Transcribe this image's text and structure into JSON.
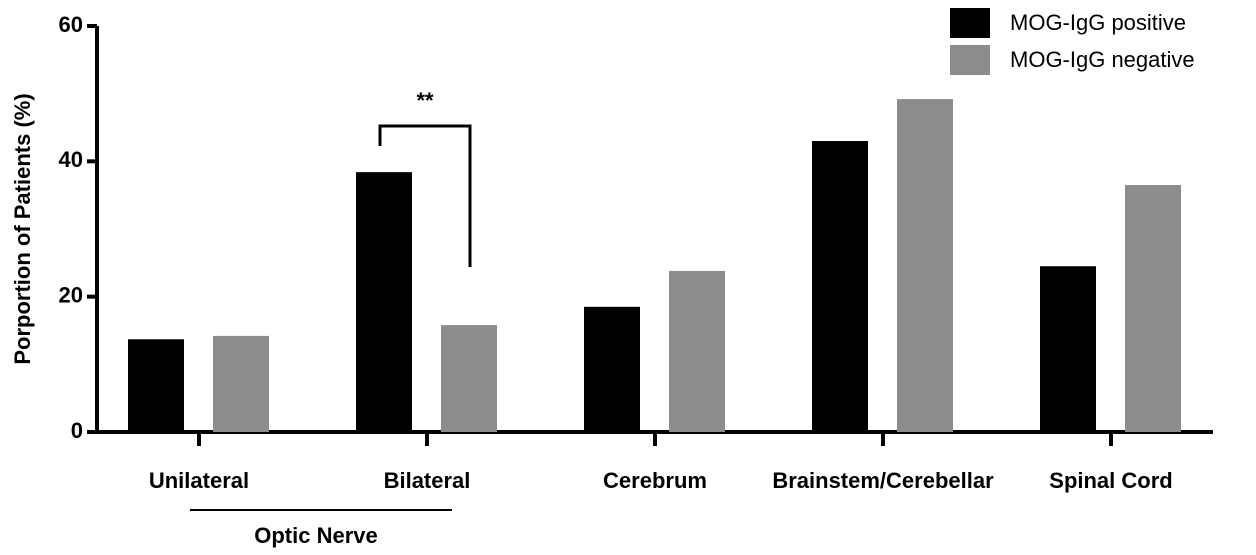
{
  "chart_data": {
    "type": "bar",
    "y_label": "Porportion of Patients (%)",
    "categories": [
      "Unilateral",
      "Bilateral",
      "Cerebrum",
      "Brainstem/Cerebellar",
      "Spinal Cord"
    ],
    "group_label": "Optic Nerve",
    "annotation": "**",
    "series": [
      {
        "name": "MOG-IgG positive",
        "color": "#000000",
        "values": [
          13.7,
          38.4,
          18.5,
          43.0,
          24.5
        ]
      },
      {
        "name": "MOG-IgG negative",
        "color": "#8c8c8c",
        "values": [
          14.2,
          15.8,
          23.8,
          49.2,
          36.5
        ]
      }
    ],
    "ylim": [
      0,
      60
    ],
    "yticks": [
      0,
      20,
      40,
      60
    ],
    "legend": "top-right"
  }
}
